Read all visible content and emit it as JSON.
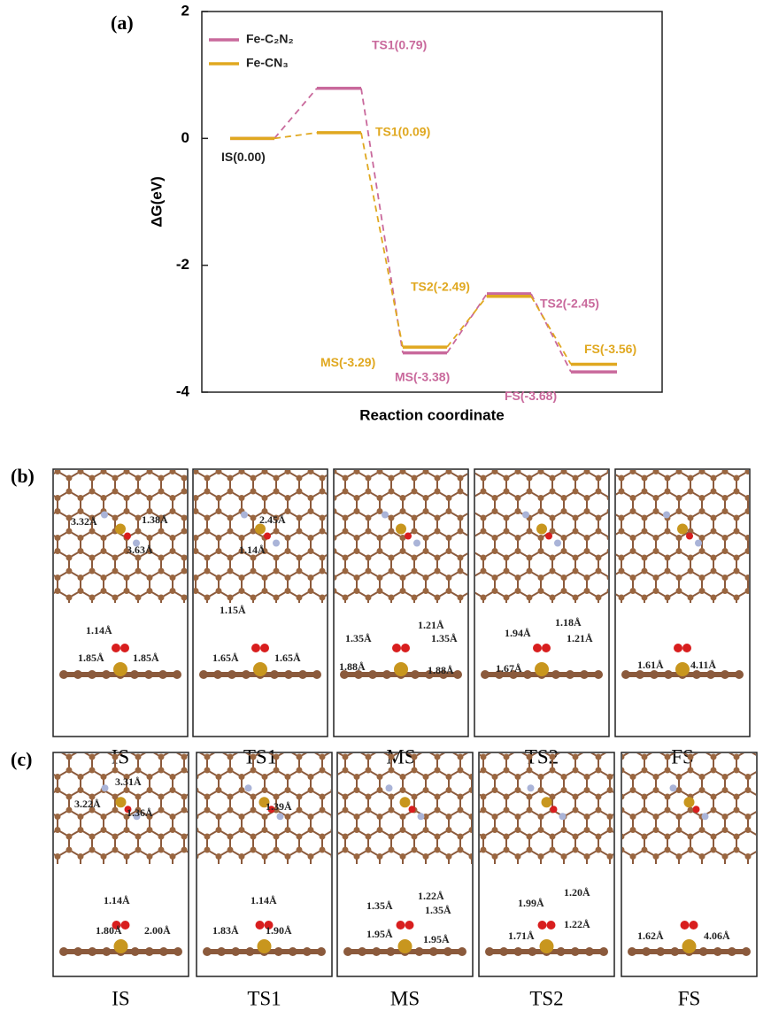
{
  "chart_data": {
    "type": "line",
    "panel_label": "(a)",
    "ylabel": "ΔG(eV)",
    "xlabel": "Reaction coordinate",
    "ylim": [
      -4,
      2
    ],
    "yticks": [
      -4,
      -2,
      0,
      2
    ],
    "legend": "upper left",
    "series": [
      {
        "name": "Fe-C₂N₂",
        "color": "#c9699c",
        "values": [
          0,
          0.79,
          -3.38,
          -2.45,
          -3.68
        ],
        "value_labels": [
          null,
          "TS1(0.79)",
          "MS(-3.38)",
          "TS2(-2.45)",
          "FS(-3.68)"
        ]
      },
      {
        "name": "Fe-CN₃",
        "color": "#e0a820",
        "values": [
          0,
          0.09,
          -3.29,
          -2.49,
          -3.56
        ],
        "value_labels": [
          "IS(0.00)",
          "TS1(0.09)",
          "MS(-3.29)",
          "TS2(-2.49)",
          "FS(-3.56)"
        ]
      }
    ]
  },
  "structures": [
    {
      "label": "(b)",
      "panels": [
        {
          "caption": "IS",
          "lengths": [
            "3.32Å",
            "1.38Å",
            "3.63Å",
            "1.14Å",
            "1.85Å",
            "1.85Å"
          ]
        },
        {
          "caption": "TS1",
          "lengths": [
            "2.45Å",
            "1.14Å",
            "1.15Å",
            "1.65Å",
            "1.65Å"
          ]
        },
        {
          "caption": "MS",
          "lengths": [
            "1.21Å",
            "1.35Å",
            "1.35Å",
            "1.88Å",
            "1.88Å"
          ]
        },
        {
          "caption": "TS2",
          "lengths": [
            "1.94Å",
            "1.18Å",
            "1.21Å",
            "1.67Å"
          ]
        },
        {
          "caption": "FS",
          "lengths": [
            "1.61Å",
            "4.11Å"
          ]
        }
      ]
    },
    {
      "label": "(c)",
      "panels": [
        {
          "caption": "IS",
          "lengths": [
            "3.31Å",
            "3.22Å",
            "1.36Å",
            "1.14Å",
            "1.80Å",
            "2.00Å"
          ]
        },
        {
          "caption": "TS1",
          "lengths": [
            "1.39Å",
            "1.14Å",
            "1.83Å",
            "1.90Å"
          ]
        },
        {
          "caption": "MS",
          "lengths": [
            "1.22Å",
            "1.35Å",
            "1.35Å",
            "1.95Å",
            "1.95Å"
          ]
        },
        {
          "caption": "TS2",
          "lengths": [
            "1.20Å",
            "1.99Å",
            "1.22Å",
            "1.71Å"
          ]
        },
        {
          "caption": "FS",
          "lengths": [
            "1.62Å",
            "4.06Å"
          ]
        }
      ]
    }
  ]
}
